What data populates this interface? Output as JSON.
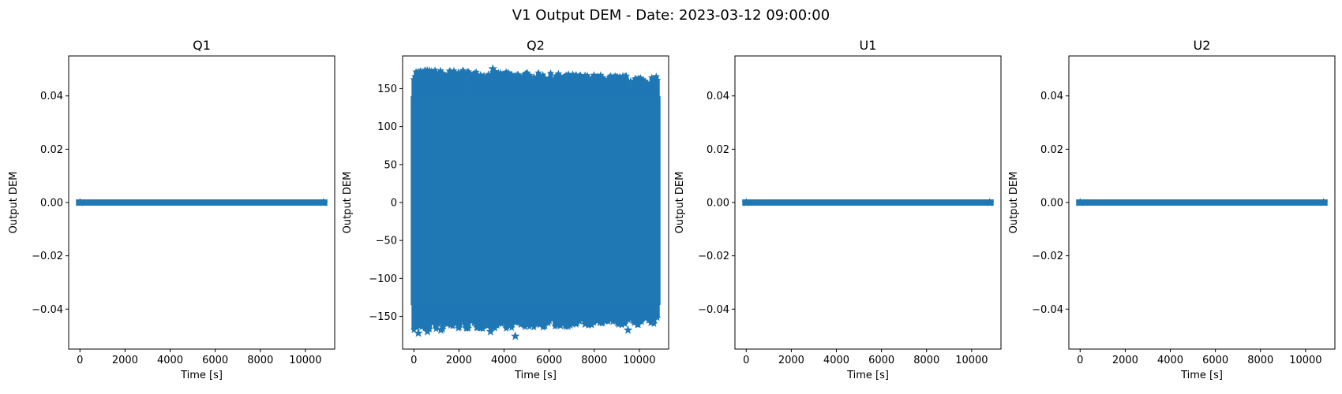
{
  "figure_title": "V1 Output DEM - Date: 2023-03-12 09:00:00",
  "colors": {
    "series": "#1f77b4",
    "axes": "#000000",
    "background": "#ffffff"
  },
  "chart_data": [
    {
      "type": "scatter",
      "title": "Q1",
      "xlabel": "Time [s]",
      "ylabel": "Output DEM",
      "marker": "star",
      "xlim": [
        -500,
        11300
      ],
      "ylim": [
        -0.055,
        0.055
      ],
      "xticks": [
        0,
        2000,
        4000,
        6000,
        8000,
        10000
      ],
      "xtick_labels": [
        "0",
        "2000",
        "4000",
        "6000",
        "8000",
        "10000"
      ],
      "yticks": [
        -0.04,
        -0.02,
        0.0,
        0.02,
        0.04
      ],
      "ytick_labels": [
        "−0.04",
        "−0.02",
        "0.00",
        "0.02",
        "0.04"
      ],
      "x_range": [
        0,
        10800
      ],
      "values_constant": 0.0
    },
    {
      "type": "scatter",
      "title": "Q2",
      "xlabel": "Time [s]",
      "ylabel": "Output DEM",
      "marker": "star",
      "xlim": [
        -500,
        11300
      ],
      "ylim": [
        -193,
        193
      ],
      "xticks": [
        0,
        2000,
        4000,
        6000,
        8000,
        10000
      ],
      "xtick_labels": [
        "0",
        "2000",
        "4000",
        "6000",
        "8000",
        "10000"
      ],
      "yticks": [
        -150,
        -100,
        -50,
        0,
        50,
        100,
        150
      ],
      "ytick_labels": [
        "−150",
        "−100",
        "−50",
        "0",
        "50",
        "100",
        "150"
      ],
      "x_range": [
        0,
        10800
      ],
      "dense_band": [
        -135,
        140
      ],
      "outliers": [
        {
          "x": 3500,
          "y": 176
        },
        {
          "x": 2200,
          "y": 172
        },
        {
          "x": 1700,
          "y": 168
        },
        {
          "x": 6500,
          "y": 166
        },
        {
          "x": 8600,
          "y": 156
        },
        {
          "x": 6800,
          "y": 155
        },
        {
          "x": 9600,
          "y": 153
        },
        {
          "x": 10000,
          "y": 152
        },
        {
          "x": 300,
          "y": 162
        },
        {
          "x": 900,
          "y": 165
        },
        {
          "x": 5000,
          "y": 160
        },
        {
          "x": 7400,
          "y": 150
        },
        {
          "x": 4500,
          "y": -176
        },
        {
          "x": 3400,
          "y": -170
        },
        {
          "x": 200,
          "y": -172
        },
        {
          "x": 600,
          "y": -170
        },
        {
          "x": 1200,
          "y": -168
        },
        {
          "x": 9500,
          "y": -168
        },
        {
          "x": 5800,
          "y": -162
        },
        {
          "x": 6500,
          "y": -162
        },
        {
          "x": 7600,
          "y": -160
        },
        {
          "x": 8300,
          "y": -157
        },
        {
          "x": 2800,
          "y": -164
        },
        {
          "x": 10600,
          "y": -150
        }
      ]
    },
    {
      "type": "scatter",
      "title": "U1",
      "xlabel": "Time [s]",
      "ylabel": "Output DEM",
      "marker": "star",
      "xlim": [
        -500,
        11300
      ],
      "ylim": [
        -0.055,
        0.055
      ],
      "xticks": [
        0,
        2000,
        4000,
        6000,
        8000,
        10000
      ],
      "xtick_labels": [
        "0",
        "2000",
        "4000",
        "6000",
        "8000",
        "10000"
      ],
      "yticks": [
        -0.04,
        -0.02,
        0.0,
        0.02,
        0.04
      ],
      "ytick_labels": [
        "−0.04",
        "−0.02",
        "0.00",
        "0.02",
        "0.04"
      ],
      "x_range": [
        0,
        10800
      ],
      "values_constant": 0.0
    },
    {
      "type": "scatter",
      "title": "U2",
      "xlabel": "Time [s]",
      "ylabel": "Output DEM",
      "marker": "star",
      "xlim": [
        -500,
        11300
      ],
      "ylim": [
        -0.055,
        0.055
      ],
      "xticks": [
        0,
        2000,
        4000,
        6000,
        8000,
        10000
      ],
      "xtick_labels": [
        "0",
        "2000",
        "4000",
        "6000",
        "8000",
        "10000"
      ],
      "yticks": [
        -0.04,
        -0.02,
        0.0,
        0.02,
        0.04
      ],
      "ytick_labels": [
        "−0.04",
        "−0.02",
        "0.00",
        "0.02",
        "0.04"
      ],
      "x_range": [
        0,
        10800
      ],
      "values_constant": 0.0
    }
  ]
}
